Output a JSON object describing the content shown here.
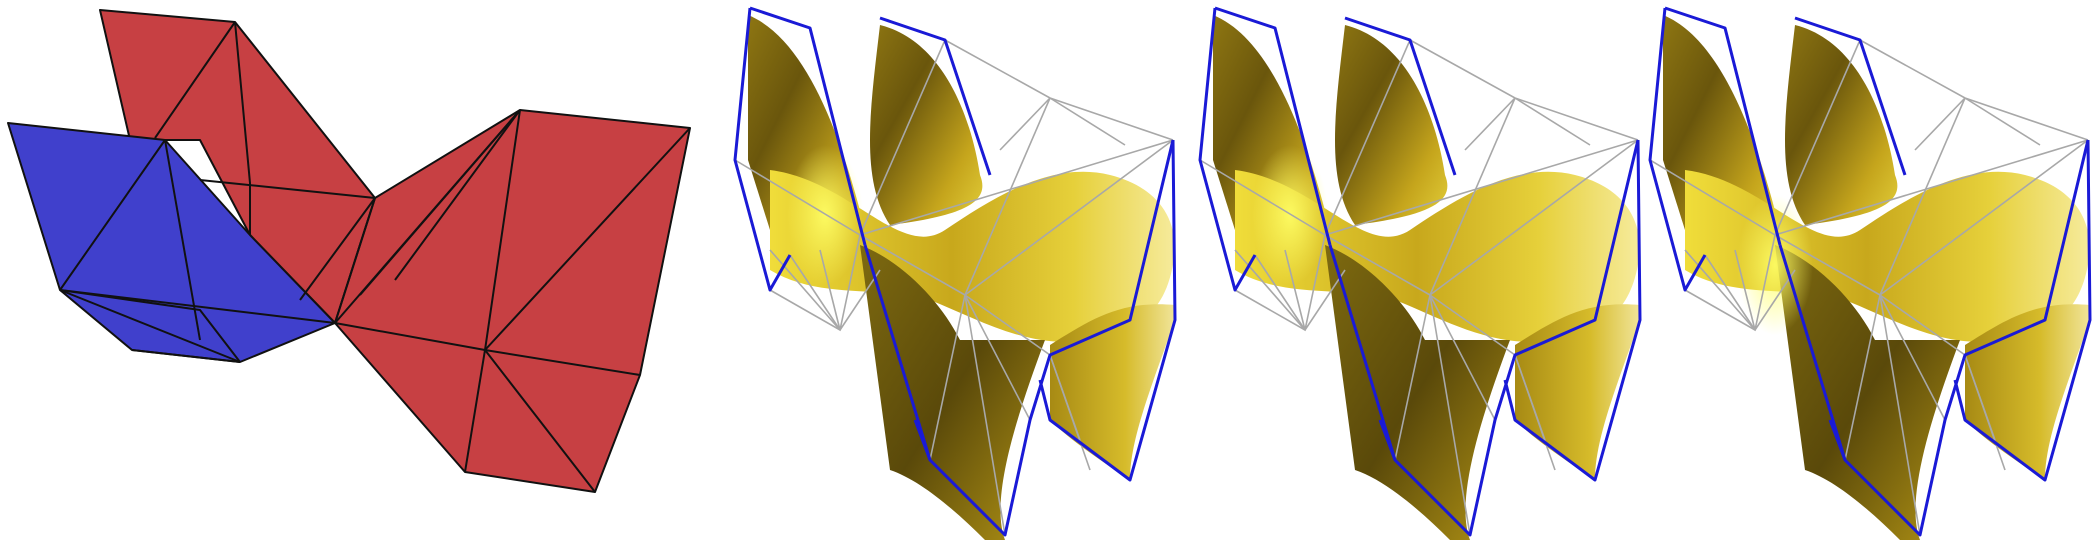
{
  "figure": {
    "panels": [
      {
        "id": "control-mesh",
        "kind": "piecewise-linear triangulated mesh"
      },
      {
        "id": "surface-1",
        "kind": "smooth surface with control net"
      },
      {
        "id": "surface-2",
        "kind": "smooth surface with control net"
      },
      {
        "id": "surface-3",
        "kind": "smooth surface with control net"
      }
    ]
  },
  "colors": {
    "background": "#ffffff",
    "mesh_red": "#c74043",
    "mesh_blue": "#4040cc",
    "mesh_edge": "#111111",
    "surface_light": "#f5e43c",
    "surface_mid": "#c9a619",
    "surface_dark": "#5e4c0a",
    "net_boundary": "#1a1ad6",
    "net_interior": "#a8a8a8"
  }
}
